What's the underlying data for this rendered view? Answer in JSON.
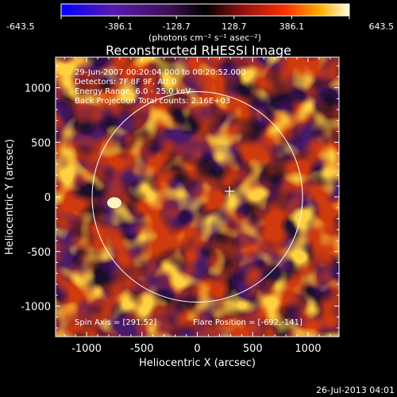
{
  "colorbar": {
    "tick_labels": [
      "-643.5",
      "-386.1",
      "-128.7",
      "128.7",
      "386.1",
      "643.5"
    ],
    "tick_values": [
      -643.5,
      -386.1,
      -128.7,
      128.7,
      386.1,
      643.5
    ],
    "range": [
      -643.5,
      643.5
    ],
    "units": "(photons cm⁻² s⁻¹ asec⁻²)"
  },
  "title": "Reconstructed RHESSI Image",
  "header": [
    "29-Jun-2007 00:20:04.000 to 00:20:52.000",
    "Detectors: 7F 8F 9F, Att 0",
    "Energy Range: 6.0 - 25.0 keV",
    "Back Projection    Total counts: 2.16E+03"
  ],
  "footer": {
    "spin_axis": "Spin Axis = [291,52]",
    "flare_position": "Flare Position = [-692,-141]",
    "timestamp": "26-Jul-2013 04:01"
  },
  "chart_data": {
    "type": "heatmap",
    "title": "Reconstructed RHESSI Image",
    "xlabel": "Heliocentric X (arcsec)",
    "ylabel": "Heliocentric Y (arcsec)",
    "xlim": [
      -1280,
      1280
    ],
    "ylim": [
      -1280,
      1280
    ],
    "x_ticks": [
      -1000,
      -500,
      0,
      500,
      1000
    ],
    "y_ticks": [
      -1000,
      -500,
      0,
      500,
      1000
    ],
    "solar_limb_radius": 950,
    "plus_marker": [
      291,
      52
    ],
    "colormap": "rhessi",
    "value_range": [
      -643.5,
      643.5
    ]
  }
}
